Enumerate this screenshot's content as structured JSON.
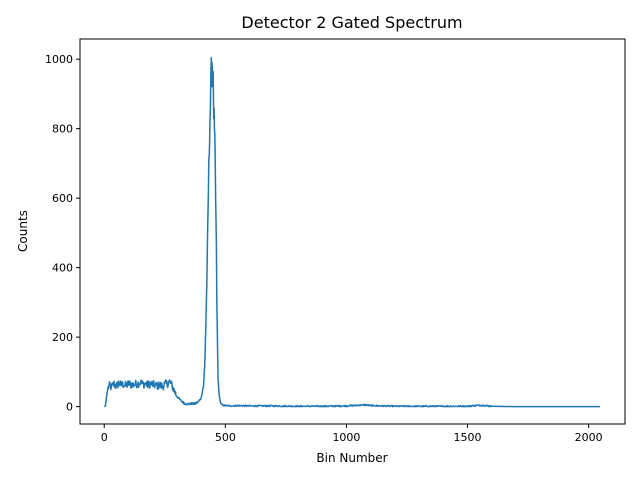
{
  "chart_data": {
    "type": "line",
    "title": "Detector 2 Gated Spectrum",
    "xlabel": "Bin Number",
    "ylabel": "Counts",
    "xlim": [
      -100,
      2150
    ],
    "ylim": [
      -50,
      1058
    ],
    "xticks": [
      0,
      500,
      1000,
      1500,
      2000
    ],
    "yticks": [
      0,
      200,
      400,
      600,
      800,
      1000
    ],
    "grid": false,
    "line_color": "#1f77b4",
    "series": [
      {
        "x": [
          0,
          5,
          10,
          15,
          20,
          30,
          40,
          50,
          60,
          70,
          80,
          90,
          100,
          110,
          120,
          130,
          140,
          150,
          160,
          170,
          180,
          190,
          200,
          210,
          220,
          230,
          240,
          250,
          260,
          270,
          280,
          290,
          300,
          310,
          320,
          330,
          340,
          350,
          360,
          370,
          380,
          390,
          400,
          410,
          415,
          420,
          425,
          430,
          435,
          440,
          442,
          445,
          448,
          450,
          452,
          455,
          458,
          460,
          463,
          465,
          468,
          470,
          475,
          480,
          485,
          490,
          500,
          520,
          550,
          600,
          700,
          800,
          900,
          1000,
          1050,
          1080,
          1100,
          1150,
          1200,
          1300,
          1400,
          1500,
          1530,
          1560,
          1600,
          1700,
          1800,
          1900,
          2000,
          2047
        ],
        "values": [
          0,
          2,
          30,
          52,
          60,
          56,
          66,
          58,
          68,
          62,
          64,
          60,
          66,
          64,
          63,
          65,
          67,
          70,
          64,
          66,
          62,
          66,
          64,
          61,
          60,
          62,
          58,
          64,
          66,
          72,
          60,
          45,
          30,
          22,
          15,
          10,
          8,
          7,
          9,
          8,
          10,
          15,
          25,
          60,
          120,
          250,
          400,
          620,
          800,
          900,
          950,
          1000,
          960,
          920,
          850,
          780,
          700,
          600,
          450,
          300,
          160,
          80,
          30,
          12,
          6,
          4,
          3,
          2,
          3,
          2,
          2,
          1,
          1,
          2,
          4,
          5,
          3,
          2,
          1,
          1,
          1,
          1,
          3,
          4,
          1,
          0,
          0,
          0,
          0,
          0
        ]
      }
    ]
  }
}
